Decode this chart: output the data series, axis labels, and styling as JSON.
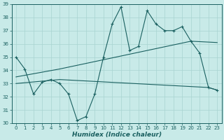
{
  "title": "",
  "xlabel": "Humidex (Indice chaleur)",
  "ylabel": "",
  "bg_color": "#c8eae8",
  "grid_color": "#a8d4d0",
  "line_color": "#1a6060",
  "xlim": [
    -0.5,
    23.5
  ],
  "ylim": [
    30,
    39
  ],
  "xticks": [
    0,
    1,
    2,
    3,
    4,
    5,
    6,
    7,
    8,
    9,
    10,
    11,
    12,
    13,
    14,
    15,
    16,
    17,
    18,
    19,
    20,
    21,
    22,
    23
  ],
  "yticks": [
    30,
    31,
    32,
    33,
    34,
    35,
    36,
    37,
    38,
    39
  ],
  "series1_x": [
    0,
    1,
    2,
    3,
    4,
    5,
    6,
    7,
    8,
    9,
    10,
    11,
    12,
    13,
    14,
    15,
    16,
    17,
    18,
    19,
    20,
    21,
    22,
    23
  ],
  "series1_y": [
    35.0,
    34.1,
    32.2,
    33.1,
    33.3,
    33.0,
    32.2,
    30.2,
    30.5,
    32.2,
    35.0,
    37.5,
    38.8,
    35.5,
    35.8,
    38.5,
    37.5,
    37.0,
    37.0,
    37.3,
    36.2,
    35.3,
    32.7,
    32.5
  ],
  "series2_x": [
    0,
    5,
    22,
    23
  ],
  "series2_y": [
    33.0,
    33.3,
    32.7,
    32.5
  ],
  "series3_x": [
    0,
    5,
    20,
    23
  ],
  "series3_y": [
    33.5,
    34.1,
    36.2,
    36.1
  ]
}
